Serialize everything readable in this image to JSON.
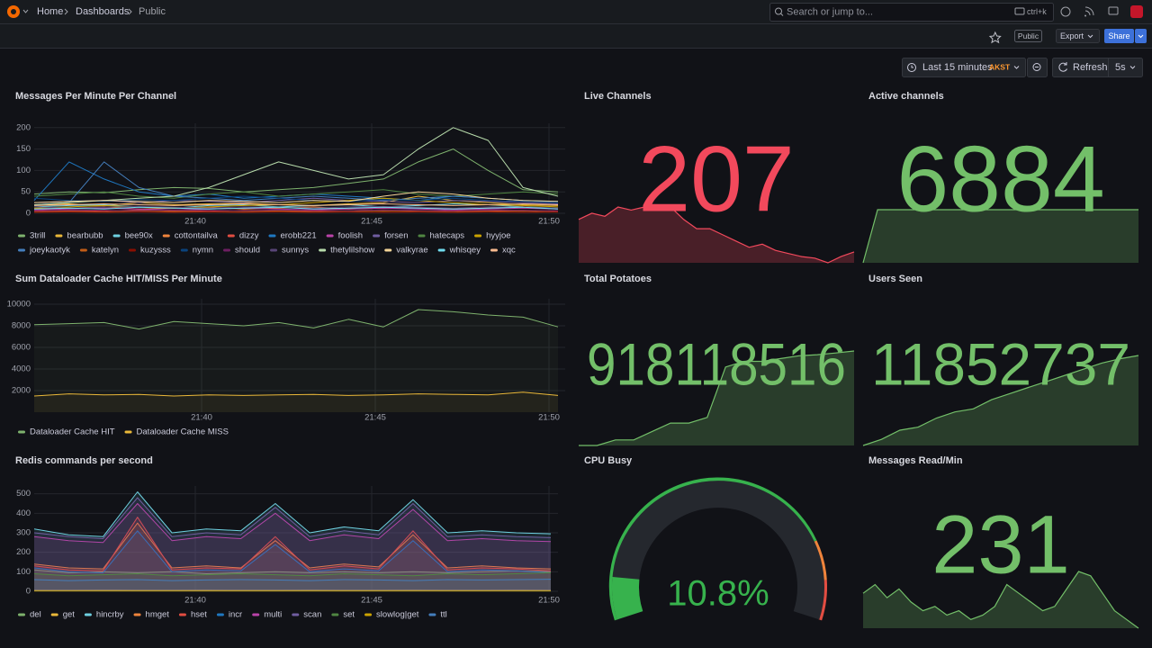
{
  "topbar": {
    "breadcrumbs": [
      "Home",
      "Dashboards",
      "Public"
    ],
    "search": "Search or jump to...",
    "shortcut": "ctrl+k"
  },
  "toolbar": {
    "tag": "Public",
    "export": "Export",
    "share": "Share"
  },
  "timepicker": {
    "range": "Last 15 minutes",
    "tz": "AKST",
    "refresh": "Refresh",
    "interval": "5s"
  },
  "panels": [
    {
      "title": "Messages Per Minute Per Channel",
      "type": "timeseries",
      "ylim": [
        0,
        210
      ],
      "yticks": [
        0,
        50,
        100,
        150,
        200
      ],
      "xticks": [
        "21:40",
        "21:45",
        "21:50"
      ],
      "fillOpacity": 0,
      "series": [
        {
          "name": "3trill",
          "color": "#7EB26D",
          "values": [
            45,
            50,
            48,
            55,
            60,
            58,
            50,
            55,
            60,
            70,
            80,
            120,
            150,
            100,
            55,
            50
          ]
        },
        {
          "name": "bearbubb",
          "color": "#EAB839",
          "values": [
            20,
            22,
            18,
            25,
            20,
            22,
            24,
            20,
            18,
            22,
            25,
            40,
            30,
            25,
            20,
            18
          ]
        },
        {
          "name": "bee90x",
          "color": "#6ED0E0",
          "values": [
            15,
            18,
            20,
            15,
            12,
            18,
            20,
            15,
            18,
            20,
            15,
            18,
            22,
            20,
            15,
            12
          ]
        },
        {
          "name": "cottontailva",
          "color": "#EF843C",
          "values": [
            10,
            12,
            15,
            10,
            12,
            14,
            10,
            12,
            15,
            10,
            12,
            14,
            10,
            12,
            15,
            10
          ]
        },
        {
          "name": "dizzy",
          "color": "#E24D42",
          "values": [
            5,
            6,
            5,
            8,
            6,
            5,
            7,
            6,
            5,
            6,
            8,
            6,
            5,
            6,
            7,
            5
          ]
        },
        {
          "name": "erobb221",
          "color": "#1F78C1",
          "values": [
            30,
            120,
            80,
            50,
            40,
            45,
            35,
            40,
            45,
            40,
            35,
            30,
            40,
            35,
            30,
            28
          ]
        },
        {
          "name": "foolish",
          "color": "#BA43A9",
          "values": [
            8,
            10,
            12,
            10,
            8,
            10,
            12,
            10,
            8,
            10,
            12,
            10,
            8,
            10,
            12,
            10
          ]
        },
        {
          "name": "forsen",
          "color": "#705DA0",
          "values": [
            25,
            28,
            30,
            25,
            30,
            28,
            25,
            30,
            35,
            30,
            28,
            25,
            30,
            28,
            25,
            22
          ]
        },
        {
          "name": "hatecaps",
          "color": "#508642",
          "values": [
            40,
            45,
            50,
            40,
            35,
            45,
            50,
            40,
            45,
            50,
            55,
            45,
            40,
            45,
            50,
            45
          ]
        },
        {
          "name": "hyyjoe",
          "color": "#CCA300",
          "values": [
            12,
            15,
            18,
            15,
            12,
            15,
            18,
            20,
            25,
            30,
            35,
            30,
            25,
            20,
            18,
            15
          ]
        },
        {
          "name": "joeykaotyk",
          "color": "#447EBC",
          "values": [
            20,
            25,
            120,
            60,
            40,
            35,
            30,
            35,
            40,
            35,
            30,
            35,
            40,
            35,
            30,
            25
          ]
        },
        {
          "name": "katelyn",
          "color": "#C15C17",
          "values": [
            3,
            4,
            3,
            5,
            4,
            3,
            4,
            5,
            3,
            4,
            5,
            4,
            3,
            4,
            5,
            3
          ]
        },
        {
          "name": "kuzysss",
          "color": "#890F02",
          "values": [
            2,
            3,
            2,
            3,
            2,
            3,
            2,
            3,
            2,
            3,
            2,
            3,
            2,
            3,
            2,
            3
          ]
        },
        {
          "name": "nymn",
          "color": "#0A437C",
          "values": [
            35,
            30,
            28,
            32,
            30,
            35,
            40,
            35,
            30,
            28,
            32,
            30,
            35,
            30,
            28,
            25
          ]
        },
        {
          "name": "should",
          "color": "#6D1F62",
          "values": [
            6,
            8,
            7,
            6,
            8,
            7,
            6,
            8,
            7,
            6,
            8,
            7,
            6,
            8,
            7,
            6
          ]
        },
        {
          "name": "sunnys",
          "color": "#584477",
          "values": [
            15,
            12,
            14,
            16,
            14,
            12,
            15,
            14,
            12,
            15,
            16,
            14,
            12,
            15,
            14,
            12
          ]
        },
        {
          "name": "thetylilshow",
          "color": "#B7DBAB",
          "values": [
            20,
            25,
            30,
            35,
            40,
            60,
            90,
            120,
            100,
            80,
            90,
            150,
            200,
            170,
            60,
            40
          ]
        },
        {
          "name": "valkyrae",
          "color": "#F4D598",
          "values": [
            25,
            28,
            30,
            28,
            25,
            30,
            28,
            25,
            30,
            28,
            40,
            50,
            45,
            35,
            30,
            28
          ]
        },
        {
          "name": "whisqey",
          "color": "#70DBED",
          "values": [
            10,
            12,
            10,
            14,
            12,
            10,
            12,
            14,
            10,
            12,
            14,
            12,
            10,
            12,
            14,
            10
          ]
        },
        {
          "name": "xqc",
          "color": "#F9BA8F",
          "values": [
            18,
            20,
            22,
            20,
            18,
            20,
            22,
            20,
            18,
            20,
            22,
            20,
            18,
            20,
            22,
            20
          ]
        }
      ]
    },
    {
      "title": "Live Channels",
      "type": "stat",
      "value": 207,
      "color": "#F2495C",
      "spark": [
        228,
        232,
        230,
        236,
        234,
        236,
        236,
        236,
        228,
        222,
        222,
        218,
        214,
        210,
        212,
        208,
        206,
        204,
        203,
        200,
        204,
        207
      ]
    },
    {
      "title": "Active channels",
      "type": "stat",
      "value": 6884,
      "color": "#73BF69",
      "spark": [
        0,
        6880,
        6884,
        6884,
        6884,
        6884,
        6884,
        6884,
        6884,
        6884,
        6884,
        6884,
        6884,
        6884,
        6884,
        6884,
        6884,
        6884,
        6884,
        6884
      ]
    },
    {
      "title": "Sum Dataloader Cache HIT/MISS Per Minute",
      "type": "timeseries",
      "ylim": [
        0,
        10500
      ],
      "yticks": [
        2000,
        4000,
        6000,
        8000,
        10000
      ],
      "xticks": [
        "21:40",
        "21:45",
        "21:50"
      ],
      "fillOpacity": 0.06,
      "series": [
        {
          "name": "Dataloader Cache HIT",
          "color": "#7EB26D",
          "values": [
            8100,
            8200,
            8300,
            7700,
            8400,
            8200,
            8000,
            8300,
            7800,
            8600,
            7900,
            9500,
            9300,
            9000,
            8800,
            7900
          ]
        },
        {
          "name": "Dataloader Cache MISS",
          "color": "#EAB839",
          "values": [
            1500,
            1700,
            1600,
            1650,
            1500,
            1600,
            1550,
            1600,
            1650,
            1550,
            1600,
            1700,
            1650,
            1600,
            1850,
            1550
          ]
        }
      ]
    },
    {
      "title": "Total Potatoes",
      "type": "stat",
      "value": 918118516,
      "color": "#73BF69",
      "spark": [
        917950000,
        917950000,
        917960000,
        917960000,
        917975000,
        917990000,
        917990000,
        918000000,
        918090000,
        918100000,
        918100000,
        918105000,
        918110000,
        918112000,
        918115000,
        918118516
      ]
    },
    {
      "title": "Users Seen",
      "type": "stat",
      "value": 11852737,
      "color": "#73BF69",
      "spark": [
        11838000,
        11839000,
        11840500,
        11841000,
        11842500,
        11843500,
        11844000,
        11845500,
        11846500,
        11847500,
        11848500,
        11849500,
        11850500,
        11851500,
        11852200,
        11852737
      ]
    },
    {
      "title": "Redis commands per second",
      "type": "timeseries",
      "ylim": [
        0,
        540
      ],
      "yticks": [
        0,
        100,
        200,
        300,
        400,
        500
      ],
      "xticks": [
        "21:40",
        "21:45",
        "21:50"
      ],
      "fillOpacity": 0.12,
      "series": [
        {
          "name": "del",
          "color": "#7EB26D",
          "values": [
            110,
            95,
            100,
            95,
            100,
            90,
            95,
            100,
            95,
            100,
            95,
            100,
            95,
            100,
            105,
            100
          ]
        },
        {
          "name": "get",
          "color": "#EAB839",
          "values": [
            5,
            5,
            6,
            5,
            5,
            6,
            5,
            5,
            6,
            5,
            5,
            6,
            5,
            5,
            6,
            5
          ]
        },
        {
          "name": "hincrby",
          "color": "#6ED0E0",
          "values": [
            320,
            290,
            280,
            510,
            300,
            320,
            310,
            450,
            300,
            330,
            310,
            470,
            300,
            310,
            300,
            295
          ]
        },
        {
          "name": "hmget",
          "color": "#EF843C",
          "values": [
            140,
            120,
            115,
            350,
            120,
            130,
            120,
            260,
            120,
            140,
            125,
            290,
            120,
            130,
            120,
            115
          ]
        },
        {
          "name": "hset",
          "color": "#E24D42",
          "values": [
            130,
            110,
            105,
            380,
            110,
            120,
            115,
            280,
            110,
            130,
            115,
            310,
            110,
            120,
            115,
            105
          ]
        },
        {
          "name": "incr",
          "color": "#1F78C1",
          "values": [
            120,
            100,
            95,
            310,
            100,
            110,
            105,
            240,
            100,
            115,
            105,
            260,
            100,
            110,
            105,
            95
          ]
        },
        {
          "name": "multi",
          "color": "#BA43A9",
          "values": [
            280,
            260,
            250,
            450,
            260,
            280,
            270,
            400,
            260,
            290,
            270,
            420,
            260,
            270,
            260,
            255
          ]
        },
        {
          "name": "scan",
          "color": "#705DA0",
          "values": [
            300,
            280,
            270,
            480,
            280,
            300,
            290,
            430,
            280,
            310,
            290,
            450,
            280,
            290,
            280,
            275
          ]
        },
        {
          "name": "set",
          "color": "#508642",
          "values": [
            90,
            80,
            85,
            90,
            80,
            85,
            90,
            85,
            80,
            90,
            85,
            80,
            90,
            85,
            90,
            95
          ]
        },
        {
          "name": "slowlog|get",
          "color": "#CCA300",
          "values": [
            2,
            2,
            2,
            2,
            2,
            2,
            2,
            2,
            2,
            2,
            2,
            2,
            2,
            2,
            2,
            2
          ]
        },
        {
          "name": "ttl",
          "color": "#447EBC",
          "values": [
            60,
            55,
            58,
            60,
            55,
            58,
            60,
            58,
            55,
            60,
            58,
            55,
            60,
            58,
            60,
            62
          ]
        }
      ]
    },
    {
      "title": "CPU Busy",
      "type": "gauge",
      "value": 10.8,
      "value_label": "10.8%",
      "range": [
        0,
        100
      ],
      "color": "#37B24D"
    },
    {
      "title": "Messages Read/Min",
      "type": "stat",
      "value": 231,
      "color": "#73BF69",
      "spark": [
        190,
        200,
        185,
        195,
        180,
        170,
        175,
        165,
        170,
        160,
        165,
        175,
        200,
        190,
        180,
        170,
        175,
        195,
        215,
        210,
        190,
        170,
        160,
        150
      ]
    }
  ]
}
